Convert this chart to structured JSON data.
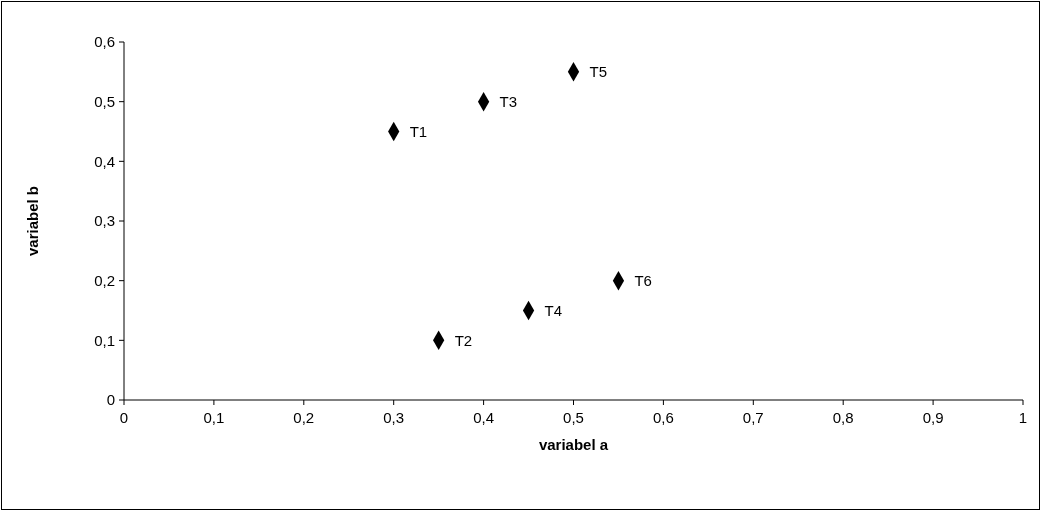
{
  "chart_data": {
    "type": "scatter",
    "xlabel": "variabel a",
    "ylabel": "variabel b",
    "marker": "diamond",
    "series": [
      {
        "color": "#000000",
        "x": [
          0.3,
          0.35,
          0.4,
          0.45,
          0.5,
          0.55
        ],
        "values": [
          0.45,
          0.1,
          0.5,
          0.15,
          0.55,
          0.2
        ]
      }
    ],
    "xlim": [
      0,
      1
    ],
    "ylim": [
      0,
      0.6
    ],
    "xticks": [
      0,
      {
        "value": 0.1,
        "label": "0,1"
      },
      {
        "value": 0.2,
        "label": "0,2"
      },
      {
        "value": 0.3,
        "label": "0,3"
      },
      {
        "value": 0.4,
        "label": "0,4"
      },
      {
        "value": 0.5,
        "label": "0,5"
      },
      {
        "value": 0.6,
        "label": "0,6"
      },
      {
        "value": 0.7,
        "label": "0,7"
      },
      {
        "value": 0.8,
        "label": "0,8"
      },
      {
        "value": 0.9,
        "label": "0,9"
      },
      1
    ],
    "yticks": [
      0,
      {
        "value": 0.1,
        "label": "0,1"
      },
      {
        "value": 0.2,
        "label": "0,2"
      },
      {
        "value": 0.3,
        "label": "0,3"
      },
      {
        "value": 0.4,
        "label": "0,4"
      },
      {
        "value": 0.5,
        "label": "0,5"
      },
      {
        "value": 0.6,
        "label": "0,6"
      }
    ],
    "annotations": [
      {
        "text": "T1",
        "x": 0.3,
        "y": 0.45
      },
      {
        "text": "T2",
        "x": 0.35,
        "y": 0.1
      },
      {
        "text": "T3",
        "x": 0.4,
        "y": 0.5
      },
      {
        "text": "T4",
        "x": 0.45,
        "y": 0.15
      },
      {
        "text": "T5",
        "x": 0.5,
        "y": 0.55
      },
      {
        "text": "T6",
        "x": 0.55,
        "y": 0.2
      }
    ]
  }
}
